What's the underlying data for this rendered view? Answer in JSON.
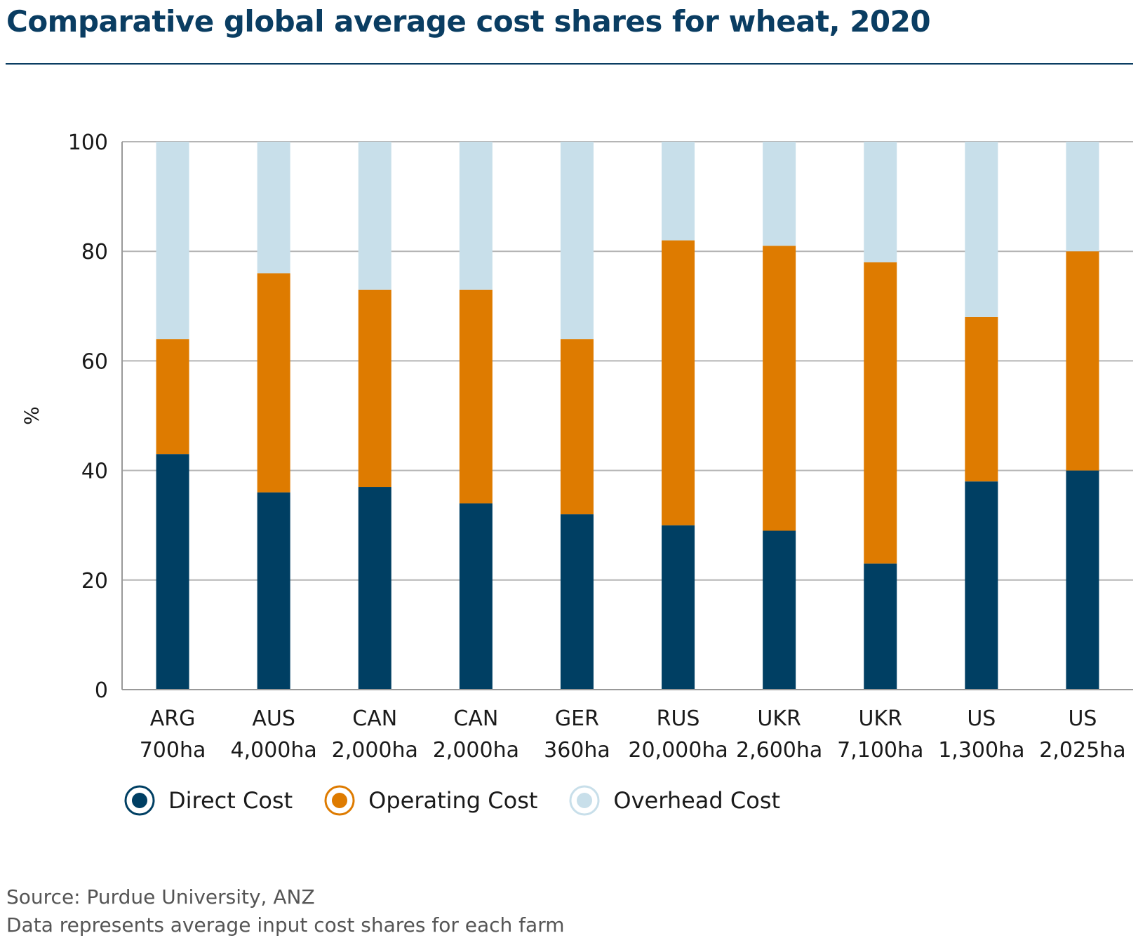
{
  "title": "Comparative global average cost shares for wheat, 2020",
  "source": "Source: Purdue University, ANZ",
  "note": "Data represents average input cost shares for each farm",
  "colors": {
    "direct": "#003f63",
    "operating": "#de7b00",
    "overhead": "#c8dfea",
    "title": "#0a3d62",
    "grid": "#b5b5b5"
  },
  "chart_data": {
    "type": "bar",
    "stacked": true,
    "ylabel": "%",
    "ylim": [
      0,
      100
    ],
    "yticks": [
      0,
      20,
      40,
      60,
      80,
      100
    ],
    "grid": true,
    "legend_position": "bottom-left",
    "categories": [
      {
        "code": "ARG",
        "size": "700ha"
      },
      {
        "code": "AUS",
        "size": "4,000ha"
      },
      {
        "code": "CAN",
        "size": "2,000ha"
      },
      {
        "code": "CAN",
        "size": "2,000ha"
      },
      {
        "code": "GER",
        "size": "360ha"
      },
      {
        "code": "RUS",
        "size": "20,000ha"
      },
      {
        "code": "UKR",
        "size": "2,600ha"
      },
      {
        "code": "UKR",
        "size": "7,100ha"
      },
      {
        "code": "US",
        "size": "1,300ha"
      },
      {
        "code": "US",
        "size": "2,025ha"
      }
    ],
    "series": [
      {
        "name": "Direct Cost",
        "key": "direct",
        "values": [
          43,
          36,
          37,
          34,
          32,
          30,
          29,
          23,
          38,
          40
        ]
      },
      {
        "name": "Operating Cost",
        "key": "operating",
        "values": [
          21,
          40,
          36,
          39,
          32,
          52,
          52,
          55,
          30,
          40
        ]
      },
      {
        "name": "Overhead Cost",
        "key": "overhead",
        "values": [
          36,
          24,
          27,
          27,
          36,
          18,
          19,
          22,
          32,
          20
        ]
      }
    ]
  }
}
